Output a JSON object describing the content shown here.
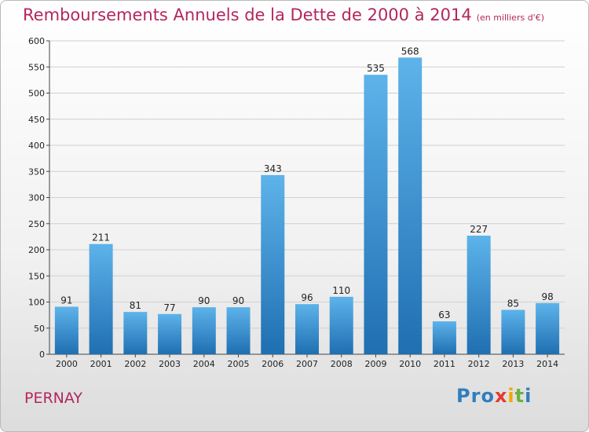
{
  "title": "Remboursements Annuels de la Dette de 2000 à 2014",
  "subtitle": "(en milliers d'€)",
  "commune": "PERNAY",
  "logo": {
    "letters": [
      {
        "char": "P",
        "color": "#2f7fc0"
      },
      {
        "char": "r",
        "color": "#2f7fc0"
      },
      {
        "char": "o",
        "color": "#2f7fc0"
      },
      {
        "char": "x",
        "color": "#e23b2f"
      },
      {
        "char": "i",
        "color": "#f2a800"
      },
      {
        "char": "t",
        "color": "#6ab23c"
      },
      {
        "char": "i",
        "color": "#2f7fc0"
      }
    ]
  },
  "colors": {
    "bar_light": "#5db3ea",
    "bar_dark": "#1f6fb1",
    "title": "#b3265e",
    "grid": "#d0d0d0"
  },
  "chart_data": {
    "type": "bar",
    "title": "Remboursements Annuels de la Dette de 2000 à 2014",
    "categories": [
      "2000",
      "2001",
      "2002",
      "2003",
      "2004",
      "2005",
      "2006",
      "2007",
      "2008",
      "2009",
      "2010",
      "2011",
      "2012",
      "2013",
      "2014"
    ],
    "values": [
      91,
      211,
      81,
      77,
      90,
      90,
      343,
      96,
      110,
      535,
      568,
      63,
      227,
      85,
      98
    ],
    "ylim": [
      0,
      600
    ],
    "yticks": [
      0,
      50,
      100,
      150,
      200,
      250,
      300,
      350,
      400,
      450,
      500,
      550,
      600
    ],
    "grid": true,
    "xlabel": "",
    "ylabel": ""
  }
}
